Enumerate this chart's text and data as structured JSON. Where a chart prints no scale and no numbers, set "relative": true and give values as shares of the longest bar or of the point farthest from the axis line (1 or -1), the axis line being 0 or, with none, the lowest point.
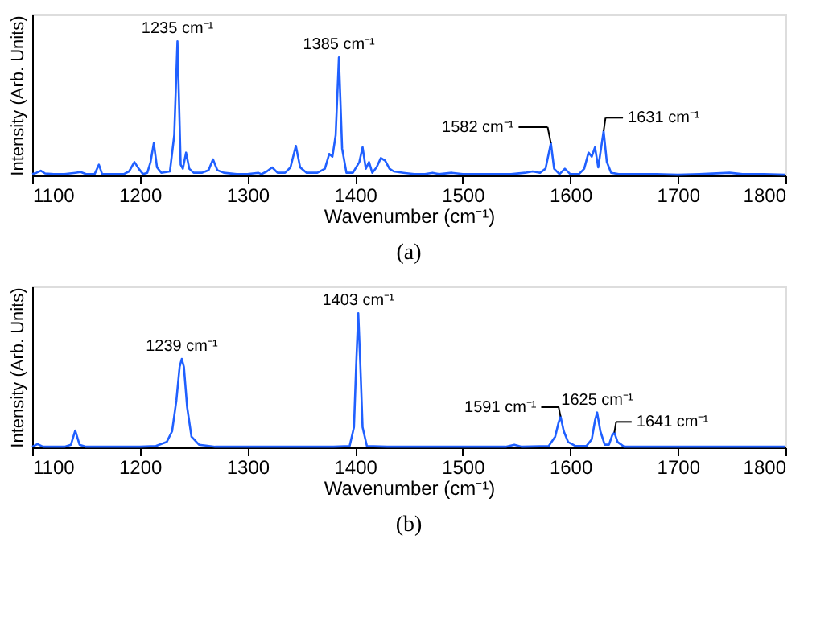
{
  "chart_data": [
    {
      "type": "line",
      "title": "(a)",
      "xlabel": "Wavenumber (cm⁻¹)",
      "ylabel": "Intensity (Arb. Units)",
      "relative": true,
      "grid": false,
      "xlim": [
        1100,
        1800
      ],
      "xticks": [
        1100,
        1200,
        1300,
        1400,
        1500,
        1600,
        1700,
        1800
      ],
      "x": [
        1100,
        1104,
        1108,
        1112,
        1120,
        1130,
        1140,
        1145,
        1150,
        1158,
        1162,
        1165,
        1175,
        1185,
        1190,
        1195,
        1199,
        1203,
        1207,
        1210,
        1213,
        1216,
        1220,
        1228,
        1232,
        1235,
        1238,
        1240,
        1243,
        1246,
        1250,
        1258,
        1264,
        1268,
        1272,
        1278,
        1290,
        1300,
        1310,
        1313,
        1318,
        1323,
        1328,
        1335,
        1340,
        1345,
        1349,
        1355,
        1365,
        1372,
        1376,
        1379,
        1382,
        1385,
        1388,
        1392,
        1398,
        1404,
        1407,
        1410,
        1413,
        1416,
        1420,
        1424,
        1428,
        1432,
        1436,
        1445,
        1455,
        1465,
        1472,
        1478,
        1490,
        1500,
        1510,
        1520,
        1530,
        1545,
        1558,
        1565,
        1572,
        1577,
        1582,
        1585,
        1590,
        1595,
        1600,
        1608,
        1613,
        1617,
        1620,
        1623,
        1626,
        1631,
        1634,
        1638,
        1645,
        1660,
        1680,
        1700,
        1720,
        1748,
        1760,
        1780,
        1800
      ],
      "series": [
        {
          "color": "#2060ff",
          "values": [
            0.01,
            0.02,
            0.035,
            0.015,
            0.01,
            0.01,
            0.02,
            0.025,
            0.01,
            0.01,
            0.08,
            0.01,
            0.01,
            0.01,
            0.03,
            0.1,
            0.05,
            0.01,
            0.02,
            0.1,
            0.24,
            0.06,
            0.02,
            0.03,
            0.3,
            1,
            0.08,
            0.05,
            0.17,
            0.05,
            0.02,
            0.02,
            0.04,
            0.12,
            0.04,
            0.02,
            0.01,
            0.01,
            0.02,
            0.01,
            0.03,
            0.06,
            0.02,
            0.02,
            0.06,
            0.22,
            0.06,
            0.02,
            0.02,
            0.05,
            0.16,
            0.14,
            0.3,
            0.88,
            0.2,
            0.02,
            0.02,
            0.1,
            0.21,
            0.05,
            0.1,
            0.02,
            0.06,
            0.13,
            0.11,
            0.05,
            0.03,
            0.02,
            0.01,
            0.01,
            0.02,
            0.01,
            0.02,
            0.01,
            0.01,
            0.01,
            0.01,
            0.01,
            0.02,
            0.03,
            0.02,
            0.05,
            0.24,
            0.05,
            0.01,
            0.05,
            0.01,
            0.01,
            0.05,
            0.17,
            0.14,
            0.21,
            0.06,
            0.33,
            0.1,
            0.02,
            0.01,
            0.01,
            0.01,
            0.005,
            0.01,
            0.02,
            0.01,
            0.01,
            0.005
          ]
        }
      ],
      "annotations": [
        {
          "text": "1235 cm⁻¹",
          "x": 1235,
          "y": 1
        },
        {
          "text": "1385 cm⁻¹",
          "x": 1385,
          "y": 0.88
        },
        {
          "text": "1582 cm⁻¹",
          "x": 1582,
          "y": 0.24
        },
        {
          "text": "1631 cm⁻¹",
          "x": 1631,
          "y": 0.33
        }
      ]
    },
    {
      "type": "line",
      "title": "(b)",
      "xlabel": "Wavenumber (cm⁻¹)",
      "ylabel": "Intensity (Arb. Units)",
      "relative": true,
      "grid": false,
      "xlim": [
        1100,
        1800
      ],
      "xticks": [
        1100,
        1200,
        1300,
        1400,
        1500,
        1600,
        1700,
        1800
      ],
      "x": [
        1100,
        1105,
        1110,
        1130,
        1136,
        1140,
        1144,
        1150,
        1180,
        1200,
        1215,
        1225,
        1230,
        1234,
        1237,
        1239,
        1241,
        1244,
        1248,
        1255,
        1270,
        1300,
        1350,
        1380,
        1395,
        1399,
        1401,
        1403,
        1405,
        1407,
        1411,
        1430,
        1500,
        1540,
        1548,
        1555,
        1580,
        1586,
        1589,
        1591,
        1594,
        1598,
        1605,
        1615,
        1620,
        1623,
        1625,
        1628,
        1632,
        1636,
        1639,
        1641,
        1644,
        1650,
        1700,
        1800
      ],
      "series": [
        {
          "color": "#2060ff",
          "values": [
            0.005,
            0.025,
            0.005,
            0.005,
            0.02,
            0.125,
            0.02,
            0.005,
            0.005,
            0.005,
            0.01,
            0.04,
            0.12,
            0.35,
            0.6,
            0.66,
            0.6,
            0.3,
            0.08,
            0.02,
            0.005,
            0.005,
            0.005,
            0.005,
            0.01,
            0.15,
            0.6,
            1,
            0.6,
            0.15,
            0.01,
            0.005,
            0.005,
            0.005,
            0.02,
            0.005,
            0.01,
            0.08,
            0.18,
            0.23,
            0.12,
            0.04,
            0.01,
            0.01,
            0.06,
            0.2,
            0.26,
            0.12,
            0.02,
            0.02,
            0.09,
            0.11,
            0.04,
            0.005,
            0.005,
            0.005
          ]
        }
      ],
      "annotations": [
        {
          "text": "1239 cm⁻¹",
          "x": 1239,
          "y": 0.66
        },
        {
          "text": "1403 cm⁻¹",
          "x": 1403,
          "y": 1
        },
        {
          "text": "1591 cm⁻¹",
          "x": 1591,
          "y": 0.23
        },
        {
          "text": "1625 cm⁻¹",
          "x": 1625,
          "y": 0.26
        },
        {
          "text": "1641 cm⁻¹",
          "x": 1641,
          "y": 0.11
        }
      ]
    }
  ]
}
